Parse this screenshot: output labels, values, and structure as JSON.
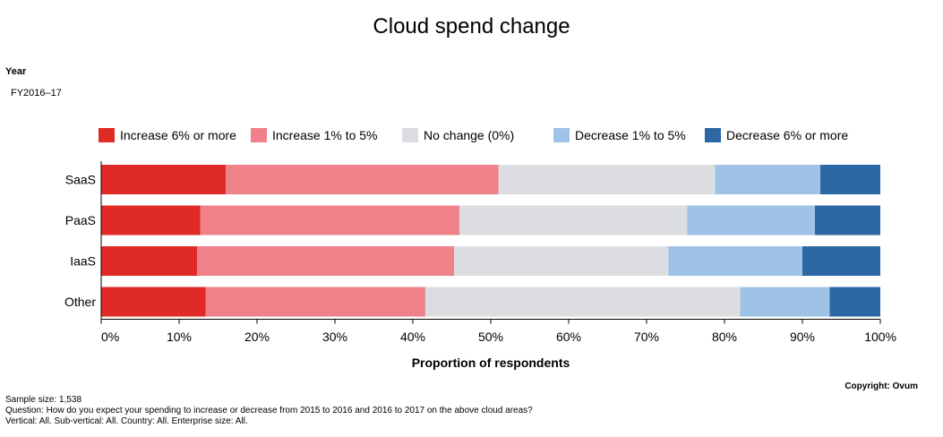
{
  "chart_data": {
    "type": "bar",
    "orientation": "horizontal",
    "stacked": true,
    "title": "Cloud spend change",
    "filter": {
      "label": "Year",
      "value": "FY2016–17"
    },
    "categories": [
      "SaaS",
      "PaaS",
      "IaaS",
      "Other"
    ],
    "series": [
      {
        "name": "Increase 6% or more",
        "color": "#e02a26",
        "values": [
          16,
          12.7,
          12.3,
          13.4
        ]
      },
      {
        "name": "Increase 1% to 5%",
        "color": "#ee818a",
        "values": [
          35,
          33.3,
          33,
          28.2
        ]
      },
      {
        "name": "No change (0%)",
        "color": "#dcdde1",
        "values": [
          27.8,
          29.2,
          27.5,
          40.4
        ]
      },
      {
        "name": "Decrease 1% to 5%",
        "color": "#9fc3e6",
        "values": [
          13.5,
          16.4,
          17.2,
          11.5
        ]
      },
      {
        "name": "Decrease 6% or more",
        "color": "#2e68a4",
        "values": [
          7.7,
          8.4,
          10,
          6.5
        ]
      }
    ],
    "xlabel": "Proportion of respondents",
    "ylabel": "",
    "xlim": [
      0,
      100
    ],
    "x_ticks": [
      "0%",
      "10%",
      "20%",
      "30%",
      "40%",
      "50%",
      "60%",
      "70%",
      "80%",
      "90%",
      "100%"
    ],
    "grid": false,
    "legend_position": "top"
  },
  "footer": {
    "sample_size": "Sample size: 1,538",
    "question": "Question: How do you expect your spending to increase or decrease from 2015 to 2016 and 2016 to 2017 on the above cloud areas?",
    "filters": "Vertical: All.  Sub-vertical: All. Country: All. Enterprise size: All.",
    "copyright": "Copyright: Ovum"
  }
}
